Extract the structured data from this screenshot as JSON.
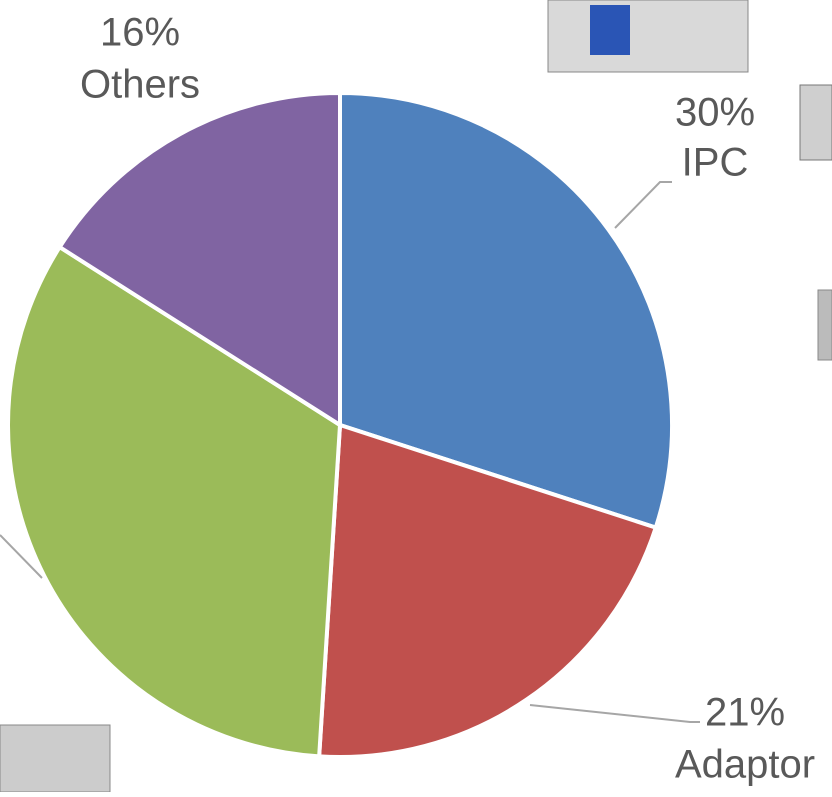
{
  "chart_data": {
    "type": "pie",
    "categories": [
      "IPC",
      "Adaptor",
      null,
      "Others"
    ],
    "values": [
      30,
      21,
      33,
      16
    ],
    "value_labels": [
      "30%",
      "21%",
      null,
      "16%"
    ],
    "colors": [
      "#4f81bd",
      "#c0504d",
      "#9bbb59",
      "#8064a2"
    ]
  }
}
